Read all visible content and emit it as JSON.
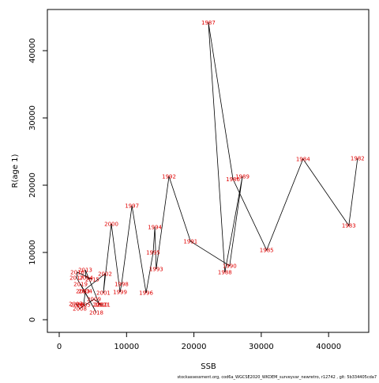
{
  "chart_data": {
    "type": "scatter",
    "xlabel": "SSB",
    "ylabel": "R(age 1)",
    "footnote": "stockassessment.org, cod6a_WGCSE2020_WKDEM_surveyvar_newretro, r12742 , git: 5b334405cda7",
    "point_labels": [
      "1982",
      "1983",
      "1984",
      "1985",
      "1986",
      "1987",
      "1988",
      "1989",
      "1990",
      "1991",
      "1992",
      "1993",
      "1994",
      "1995",
      "1996",
      "1997",
      "1998",
      "1999",
      "2000",
      "2001",
      "2002",
      "2003",
      "2004",
      "2005",
      "2006",
      "2007",
      "2008",
      "2009",
      "2010",
      "2011",
      "2012",
      "2013",
      "2014",
      "2015",
      "2016",
      "2017",
      "2018",
      "2019"
    ],
    "x": [
      44300,
      43000,
      36200,
      30800,
      25800,
      22150,
      24600,
      27200,
      25300,
      19500,
      16300,
      14400,
      14200,
      13950,
      12900,
      10800,
      9260,
      9030,
      7740,
      6560,
      6800,
      3520,
      3870,
      3630,
      2700,
      2460,
      3050,
      5160,
      6210,
      6560,
      5980,
      3870,
      3990,
      4920,
      2700,
      2580,
      5510,
      3170
    ],
    "values": [
      24000,
      14000,
      23900,
      10350,
      20900,
      44200,
      7060,
      21300,
      8000,
      11650,
      21300,
      7530,
      13760,
      10000,
      4000,
      16940,
      5300,
      4120,
      14240,
      4000,
      6820,
      4240,
      4240,
      2240,
      2240,
      2350,
      1650,
      3060,
      2240,
      2240,
      2240,
      7410,
      6240,
      6000,
      7060,
      6240,
      1060,
      5300
    ],
    "color": "#e00000",
    "line_color": "#000000",
    "xlim": [
      -1760,
      45960
    ],
    "ylim": [
      -1880,
      46120
    ],
    "xticks": [
      0,
      10000,
      20000,
      30000,
      40000
    ],
    "yticks": [
      0,
      10000,
      20000,
      30000,
      40000
    ]
  }
}
